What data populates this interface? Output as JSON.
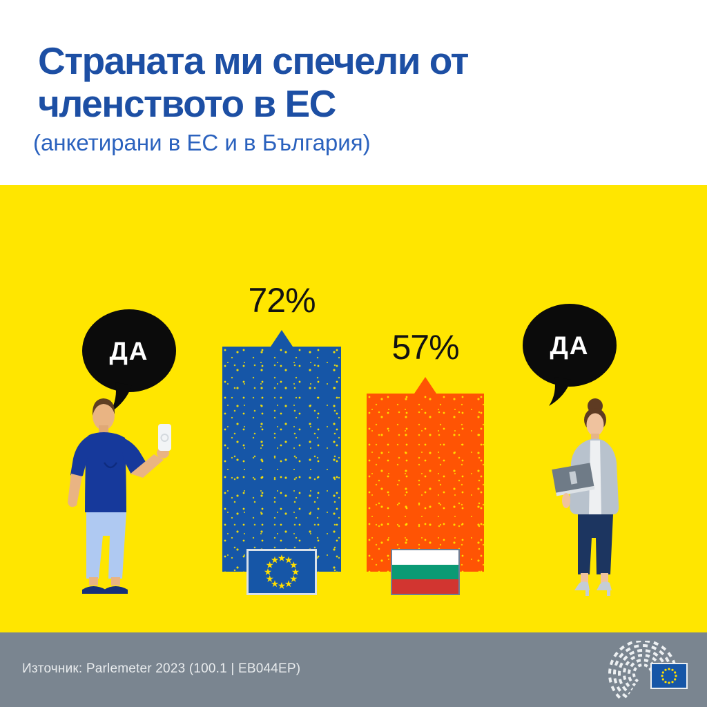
{
  "header": {
    "title_line1": "Страната ми спечели от",
    "title_line2": "членството в ЕС",
    "subtitle": "(анкетирани в ЕС и в България)"
  },
  "chart_data": {
    "type": "bar",
    "title": "Страната ми спечели от членството в ЕС",
    "subtitle": "(анкетирани в ЕС и в България)",
    "categories": [
      "ЕС",
      "България"
    ],
    "series": [
      {
        "name": "ДА",
        "values": [
          72,
          57
        ]
      }
    ],
    "unit": "%",
    "ylim": [
      0,
      100
    ],
    "grid": false,
    "legend": "none",
    "bar_colors": [
      "#1656A7",
      "#FF5404"
    ],
    "annotations": [
      "ДА",
      "ДА"
    ]
  },
  "bars": [
    {
      "label": "72%",
      "value": 72,
      "flag": "eu-flag"
    },
    {
      "label": "57%",
      "value": 57,
      "flag": "bulgaria-flag"
    }
  ],
  "bubbles": {
    "left": "ДА",
    "right": "ДА"
  },
  "footer": {
    "source": "Източник: Parlemeter 2023 (100.1 | EB044EP)"
  },
  "colors": {
    "background_yellow": "#FFE600",
    "bar_blue": "#1656A7",
    "bar_orange": "#FF5404",
    "title_blue": "#1D4FA4",
    "subtitle_blue": "#2B62BE",
    "footer_gray": "#7A8590",
    "bubble_black": "#0B0B0B",
    "bg_flag_green": "#0A9A74",
    "bg_flag_red": "#D23530"
  }
}
